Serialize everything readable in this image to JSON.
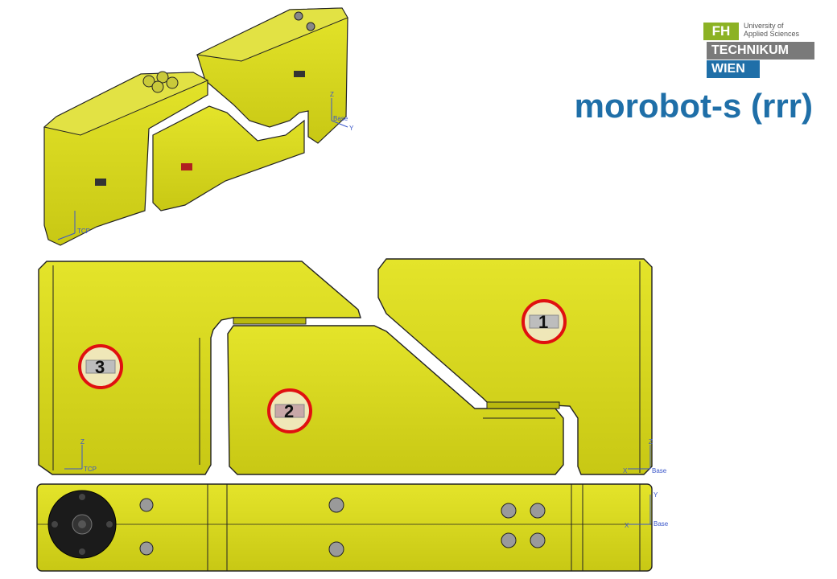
{
  "logo": {
    "fh": "FH",
    "subtitle_line1": "University of",
    "subtitle_line2": "Applied Sciences",
    "technikum": "TECHNIKUM",
    "wien": "WIEN"
  },
  "title": "morobot-s (rrr)",
  "joints": [
    {
      "id": "1",
      "label": "1"
    },
    {
      "id": "2",
      "label": "2"
    },
    {
      "id": "3",
      "label": "3"
    }
  ],
  "axis_labels": {
    "z": "Z",
    "y": "Y",
    "x": "X",
    "base": "Base",
    "tcp": "TCP"
  },
  "colors": {
    "part_yellow": "#d8d81a",
    "part_dark": "#a9a90c",
    "badge_ring": "#e01010",
    "title_blue": "#1f6fa8"
  }
}
